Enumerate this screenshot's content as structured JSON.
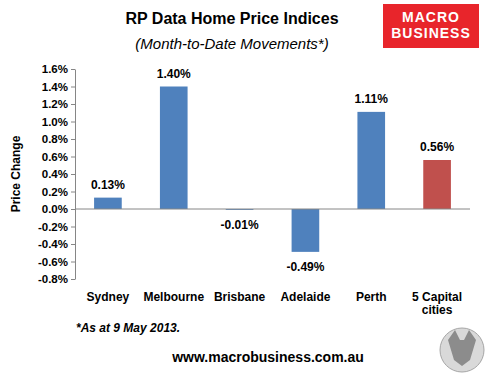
{
  "chart_data": {
    "type": "bar",
    "title": "RP Data Home Price Indices",
    "subtitle": "(Month-to-Date Movements*)",
    "y_label": "Price Change",
    "categories": [
      "Sydney",
      "Melbourne",
      "Brisbane",
      "Adelaide",
      "Perth",
      "5 Capital cities"
    ],
    "values": [
      0.13,
      1.4,
      -0.01,
      -0.49,
      1.11,
      0.56
    ],
    "value_labels": [
      "0.13%",
      "1.40%",
      "-0.01%",
      "-0.49%",
      "1.11%",
      "0.56%"
    ],
    "colors": [
      "#4f81bd",
      "#4f81bd",
      "#4f81bd",
      "#4f81bd",
      "#4f81bd",
      "#c0504d"
    ],
    "ylim": [
      -0.8,
      1.6
    ],
    "yticks": [
      {
        "value": -0.8,
        "label": "-0.8%"
      },
      {
        "value": -0.6,
        "label": "-0.6%"
      },
      {
        "value": -0.4,
        "label": "-0.4%"
      },
      {
        "value": -0.2,
        "label": "-0.2%"
      },
      {
        "value": 0,
        "label": "0.0%"
      },
      {
        "value": 0.2,
        "label": "0.2%"
      },
      {
        "value": 0.4,
        "label": "0.4%"
      },
      {
        "value": 0.6,
        "label": "0.6%"
      },
      {
        "value": 0.8,
        "label": "0.8%"
      },
      {
        "value": 1.0,
        "label": "1.0%"
      },
      {
        "value": 1.2,
        "label": "1.2%"
      },
      {
        "value": 1.4,
        "label": "1.4%"
      },
      {
        "value": 1.6,
        "label": "1.6%"
      }
    ],
    "grid": false,
    "data_labels": true,
    "footnote": "*As at 9 May 2013.",
    "source": "www.macrobusiness.com.au",
    "logo": [
      "MACRO",
      "BUSINESS"
    ]
  }
}
